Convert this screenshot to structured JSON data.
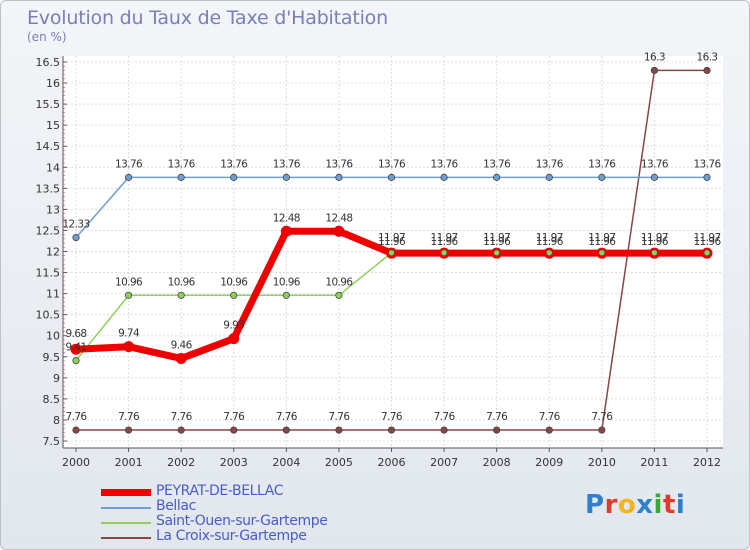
{
  "chart_data": {
    "type": "line",
    "title": "Evolution du Taux de Taxe d'Habitation",
    "subtitle": "(en %)",
    "xlabel": "",
    "ylabel": "",
    "x": [
      "2000",
      "2001",
      "2002",
      "2003",
      "2004",
      "2005",
      "2006",
      "2007",
      "2008",
      "2009",
      "2010",
      "2011",
      "2012"
    ],
    "ylim": [
      7.5,
      16.5
    ],
    "yticks": [
      "7.5",
      "8",
      "8.5",
      "9",
      "9.5",
      "10",
      "10.5",
      "11",
      "11.5",
      "12",
      "12.5",
      "13",
      "13.5",
      "14",
      "14.5",
      "15",
      "15.5",
      "16",
      "16.5"
    ],
    "grid": true,
    "legend_position": "bottom-left",
    "series": [
      {
        "name": "PEYRAT-DE-BELLAC",
        "color": "#ee0000",
        "values": [
          9.68,
          9.74,
          9.46,
          9.93,
          12.48,
          12.48,
          11.96,
          11.96,
          11.96,
          11.96,
          11.96,
          11.96,
          11.96
        ],
        "labels": [
          "9.68",
          "9.74",
          "9.46",
          "9.93",
          "12.48",
          "12.48",
          "11.96",
          "11.96",
          "11.96",
          "11.96",
          "11.96",
          "11.96",
          "11.96"
        ]
      },
      {
        "name": "Bellac",
        "color": "#6f9fcf",
        "values": [
          12.33,
          13.76,
          13.76,
          13.76,
          13.76,
          13.76,
          13.76,
          13.76,
          13.76,
          13.76,
          13.76,
          13.76,
          13.76
        ],
        "labels": [
          "12.33",
          "13.76",
          "13.76",
          "13.76",
          "13.76",
          "13.76",
          "13.76",
          "13.76",
          "13.76",
          "13.76",
          "13.76",
          "13.76",
          "13.76"
        ]
      },
      {
        "name": "Saint-Ouen-sur-Gartempe",
        "color": "#8ed05a",
        "values": [
          9.41,
          10.96,
          10.96,
          10.96,
          10.96,
          10.96,
          11.97,
          11.97,
          11.97,
          11.97,
          11.97,
          11.97,
          11.97
        ],
        "labels": [
          "9.41",
          "10.96",
          "10.96",
          "10.96",
          "10.96",
          "10.96",
          "11.97",
          "11.97",
          "11.97",
          "11.97",
          "11.97",
          "11.97",
          "11.97"
        ]
      },
      {
        "name": "La Croix-sur-Gartempe",
        "color": "#8a4545",
        "values": [
          7.76,
          7.76,
          7.76,
          7.76,
          7.76,
          7.76,
          7.76,
          7.76,
          7.76,
          7.76,
          7.76,
          16.3,
          16.3
        ],
        "labels": [
          "7.76",
          "7.76",
          "7.76",
          "7.76",
          "7.76",
          "7.76",
          "7.76",
          "7.76",
          "7.76",
          "7.76",
          "7.76",
          "16.3",
          "16.3"
        ]
      }
    ]
  },
  "brand": {
    "name": "Proxiti",
    "letters": [
      "P",
      "r",
      "o",
      "x",
      "i",
      "t",
      "i"
    ],
    "colors": [
      "#2f7fd0",
      "#e23a2a",
      "#f2b41c",
      "#2f7fd0",
      "#3aaa35",
      "#e23a2a",
      "#2f7fd0"
    ]
  }
}
